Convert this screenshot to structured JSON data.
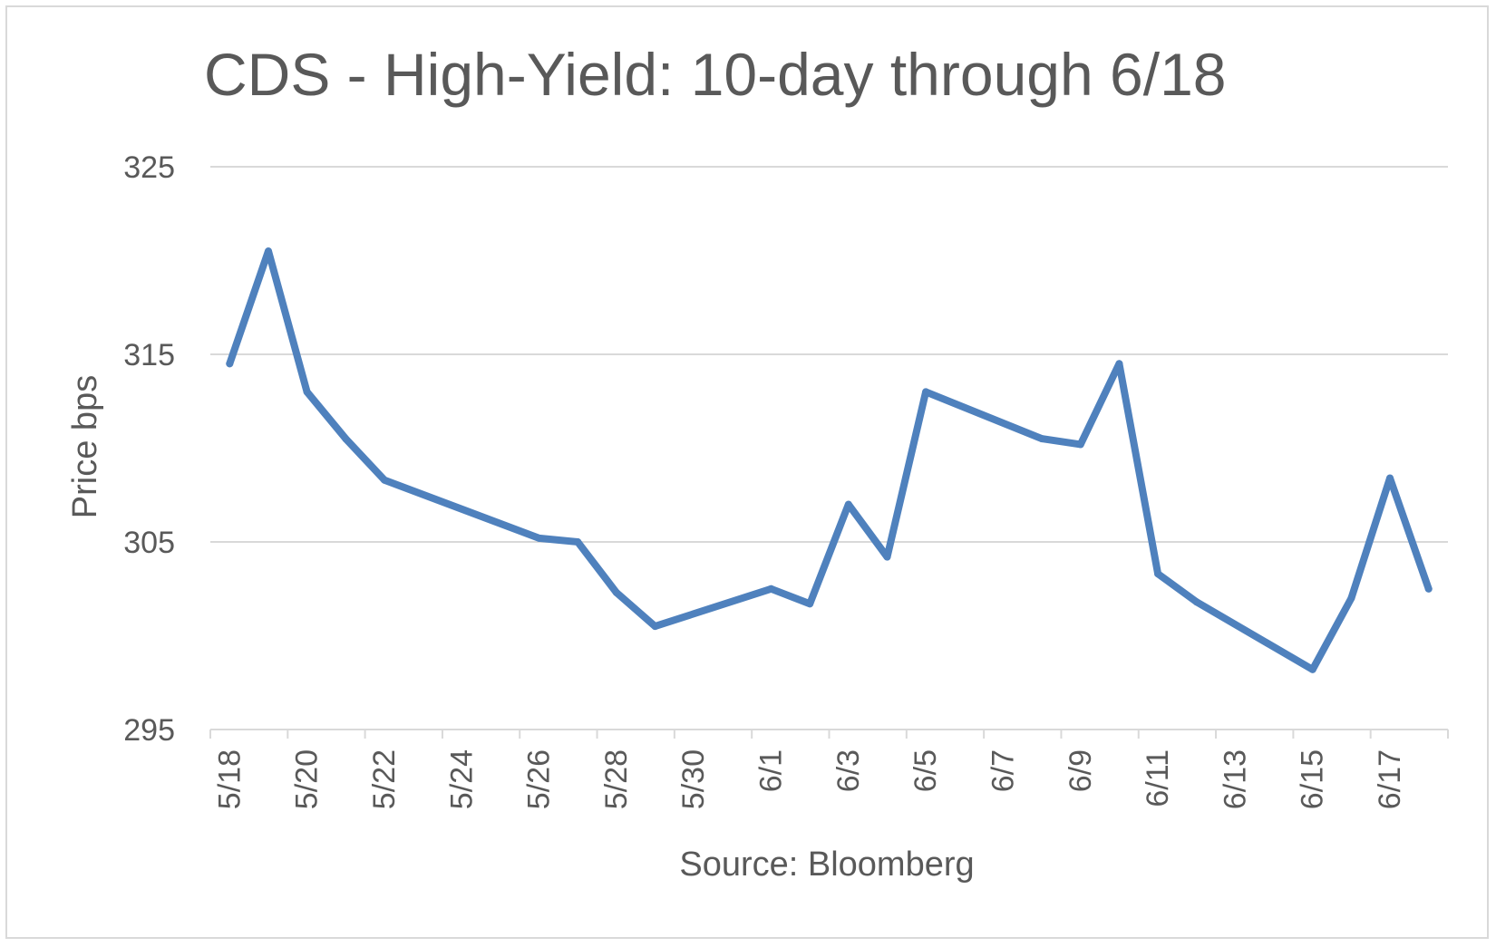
{
  "chart_data": {
    "type": "line",
    "title": "CDS - High-Yield: 10-day through 6/18",
    "xlabel": "Source: Bloomberg",
    "ylabel": "Price bps",
    "ylim": [
      295,
      325
    ],
    "yticks": [
      295,
      305,
      315,
      325
    ],
    "categories": [
      "5/18",
      "5/19",
      "5/20",
      "5/21",
      "5/22",
      "5/23",
      "5/24",
      "5/25",
      "5/26",
      "5/27",
      "5/28",
      "5/29",
      "5/30",
      "5/31",
      "6/1",
      "6/2",
      "6/3",
      "6/4",
      "6/5",
      "6/6",
      "6/7",
      "6/8",
      "6/9",
      "6/10",
      "6/11",
      "6/12",
      "6/13",
      "6/14",
      "6/15",
      "6/16",
      "6/17",
      "6/18"
    ],
    "xtick_labels": [
      "5/18",
      "5/20",
      "5/22",
      "5/24",
      "5/26",
      "5/28",
      "5/30",
      "6/1",
      "6/3",
      "6/5",
      "6/7",
      "6/9",
      "6/11",
      "6/13",
      "6/15",
      "6/17"
    ],
    "grid": true,
    "series": [
      {
        "color": "#4f81bd",
        "points": [
          {
            "x": "5/18",
            "y": 314.5
          },
          {
            "x": "5/19",
            "y": 320.5
          },
          {
            "x": "5/20",
            "y": 313.0
          },
          {
            "x": "5/21",
            "y": 310.5
          },
          {
            "x": "5/22",
            "y": 308.3
          },
          {
            "x": "5/26",
            "y": 305.2
          },
          {
            "x": "5/27",
            "y": 305.0
          },
          {
            "x": "5/28",
            "y": 302.3
          },
          {
            "x": "5/29",
            "y": 300.5
          },
          {
            "x": "6/1",
            "y": 302.5
          },
          {
            "x": "6/2",
            "y": 301.7
          },
          {
            "x": "6/3",
            "y": 307.0
          },
          {
            "x": "6/4",
            "y": 304.2
          },
          {
            "x": "6/5",
            "y": 313.0
          },
          {
            "x": "6/8",
            "y": 310.5
          },
          {
            "x": "6/9",
            "y": 310.2
          },
          {
            "x": "6/10",
            "y": 314.5
          },
          {
            "x": "6/11",
            "y": 303.3
          },
          {
            "x": "6/12",
            "y": 301.8
          },
          {
            "x": "6/15",
            "y": 298.2
          },
          {
            "x": "6/16",
            "y": 302.0
          },
          {
            "x": "6/17",
            "y": 308.4
          },
          {
            "x": "6/18",
            "y": 302.5
          }
        ]
      }
    ]
  }
}
